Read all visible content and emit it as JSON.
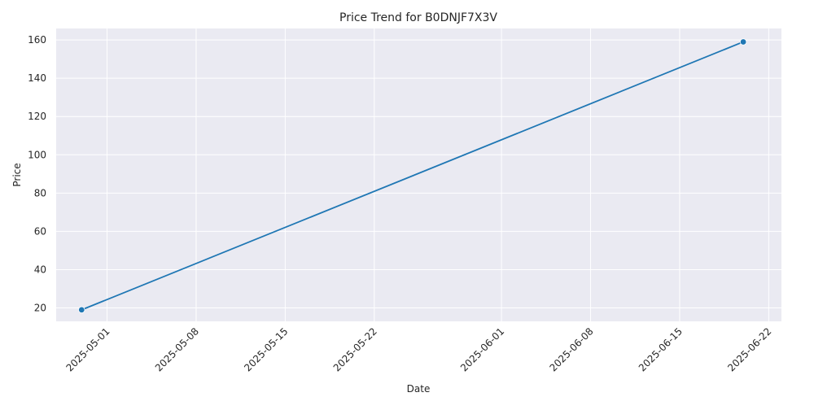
{
  "chart_data": {
    "type": "line",
    "title": "Price Trend for B0DNJF7X3V",
    "xlabel": "Date",
    "ylabel": "Price",
    "x_type": "date",
    "xlim": [
      "2025-04-27",
      "2025-06-23"
    ],
    "ylim": [
      13,
      166
    ],
    "xticks": [
      "2025-05-01",
      "2025-05-08",
      "2025-05-15",
      "2025-05-22",
      "2025-06-01",
      "2025-06-08",
      "2025-06-15",
      "2025-06-22"
    ],
    "yticks": [
      20,
      40,
      60,
      80,
      100,
      120,
      140,
      160
    ],
    "grid": true,
    "series": [
      {
        "x": [
          "2025-04-29",
          "2025-06-20"
        ],
        "y": [
          19,
          159
        ],
        "color": "#1f77b4",
        "marker": "circle"
      }
    ],
    "colors": {
      "plot_background": "#eaeaf2",
      "grid": "#ffffff",
      "line": "#1f77b4"
    }
  }
}
